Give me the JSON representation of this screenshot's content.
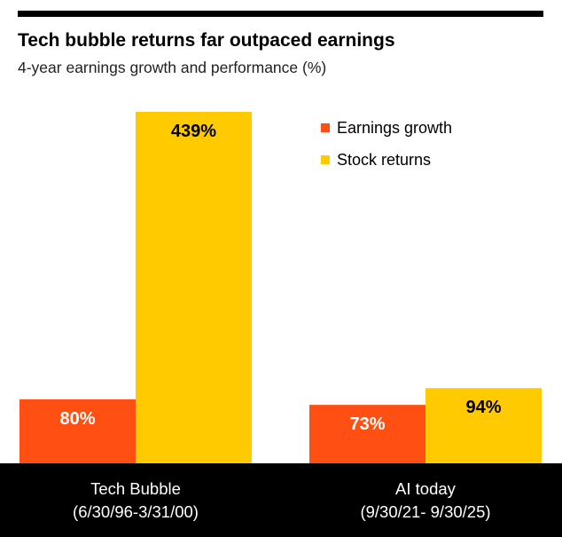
{
  "title": "Tech bubble returns far outpaced earnings",
  "subtitle": "4-year earnings growth and performance (%)",
  "colors": {
    "earnings": "#FF4F12",
    "returns": "#FFCB00",
    "background": "#FFFFFF",
    "footer": "#000000"
  },
  "legend": [
    {
      "label": "Earnings growth",
      "color": "#FF4F12"
    },
    {
      "label": "Stock returns",
      "color": "#FFCB00"
    }
  ],
  "categories": [
    {
      "line1": "Tech Bubble",
      "line2": "(6/30/96-3/31/00)"
    },
    {
      "line1": "AI today",
      "line2": "(9/30/21- 9/30/25)"
    }
  ],
  "chart_data": {
    "type": "bar",
    "title": "Tech bubble returns far outpaced earnings",
    "subtitle": "4-year earnings growth and performance (%)",
    "categories": [
      "Tech Bubble (6/30/96-3/31/00)",
      "AI today (9/30/21- 9/30/25)"
    ],
    "series": [
      {
        "name": "Earnings growth",
        "values": [
          80,
          73
        ],
        "labels": [
          "80%",
          "73%"
        ],
        "color": "#FF4F12"
      },
      {
        "name": "Stock returns",
        "values": [
          439,
          94
        ],
        "labels": [
          "439%",
          "94%"
        ],
        "color": "#FFCB00"
      }
    ],
    "ylim": [
      0,
      439
    ],
    "grid": false,
    "legend_position": "top-right"
  }
}
